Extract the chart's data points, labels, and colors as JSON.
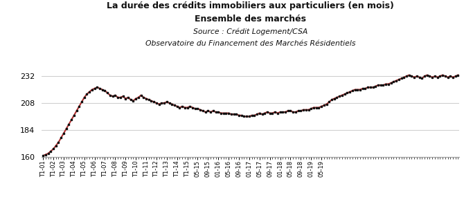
{
  "title_line1": "La durée des crédits immobiliers aux particuliers (en mois)",
  "title_line2": "Ensemble des marchés",
  "subtitle_line1": "Source : Crédit Logement/CSA",
  "subtitle_line2": "Observatoire du Financement des Marchés Résidentiels",
  "ylim": [
    160,
    236
  ],
  "yticks": [
    160,
    184,
    208,
    232
  ],
  "line_color": "#b03030",
  "dot_color": "#111111",
  "background_color": "#ffffff",
  "grid_color": "#cccccc",
  "values": [
    161,
    162,
    163,
    165,
    167,
    170,
    173,
    177,
    181,
    185,
    189,
    193,
    197,
    201,
    205,
    209,
    213,
    216,
    218,
    220,
    221,
    222,
    221,
    220,
    219,
    217,
    215,
    214,
    215,
    213,
    213,
    214,
    212,
    213,
    211,
    210,
    212,
    213,
    215,
    213,
    212,
    211,
    210,
    209,
    208,
    207,
    208,
    208,
    209,
    208,
    207,
    206,
    205,
    204,
    205,
    204,
    204,
    205,
    204,
    203,
    203,
    202,
    201,
    200,
    201,
    200,
    201,
    200,
    200,
    199,
    199,
    199,
    199,
    198,
    198,
    198,
    197,
    197,
    196,
    196,
    196,
    197,
    197,
    198,
    199,
    198,
    199,
    200,
    199,
    199,
    200,
    199,
    200,
    200,
    200,
    201,
    201,
    200,
    200,
    201,
    201,
    202,
    202,
    202,
    203,
    204,
    204,
    204,
    205,
    206,
    207,
    209,
    211,
    212,
    213,
    214,
    215,
    216,
    217,
    218,
    219,
    220,
    220,
    220,
    221,
    221,
    222,
    222,
    222,
    223,
    224,
    224,
    224,
    225,
    225,
    226,
    227,
    228,
    229,
    230,
    231,
    232,
    233,
    232,
    231,
    232,
    231,
    230,
    232,
    233,
    232,
    231,
    232,
    231,
    232,
    233,
    232,
    231,
    232,
    231,
    232,
    233
  ],
  "x_tick_labels": [
    "T1-01",
    "T1-02",
    "T1-03",
    "T1-04",
    "T1-05",
    "T1-06",
    "T1-07",
    "T1-08",
    "T1-09",
    "T1-10",
    "T1-11",
    "T1-12",
    "T1-13",
    "T1-14",
    "T1-15",
    "05-15",
    "09-15",
    "01-16",
    "05-16",
    "09-16",
    "01-17",
    "05-17",
    "09-17",
    "01-18",
    "05-18",
    "09-18",
    "01-19",
    "05-19"
  ],
  "x_tick_positions": [
    0,
    4,
    8,
    12,
    16,
    20,
    24,
    28,
    32,
    36,
    40,
    44,
    48,
    52,
    56,
    60,
    64,
    68,
    72,
    76,
    80,
    84,
    88,
    92,
    96,
    100,
    104,
    108
  ]
}
